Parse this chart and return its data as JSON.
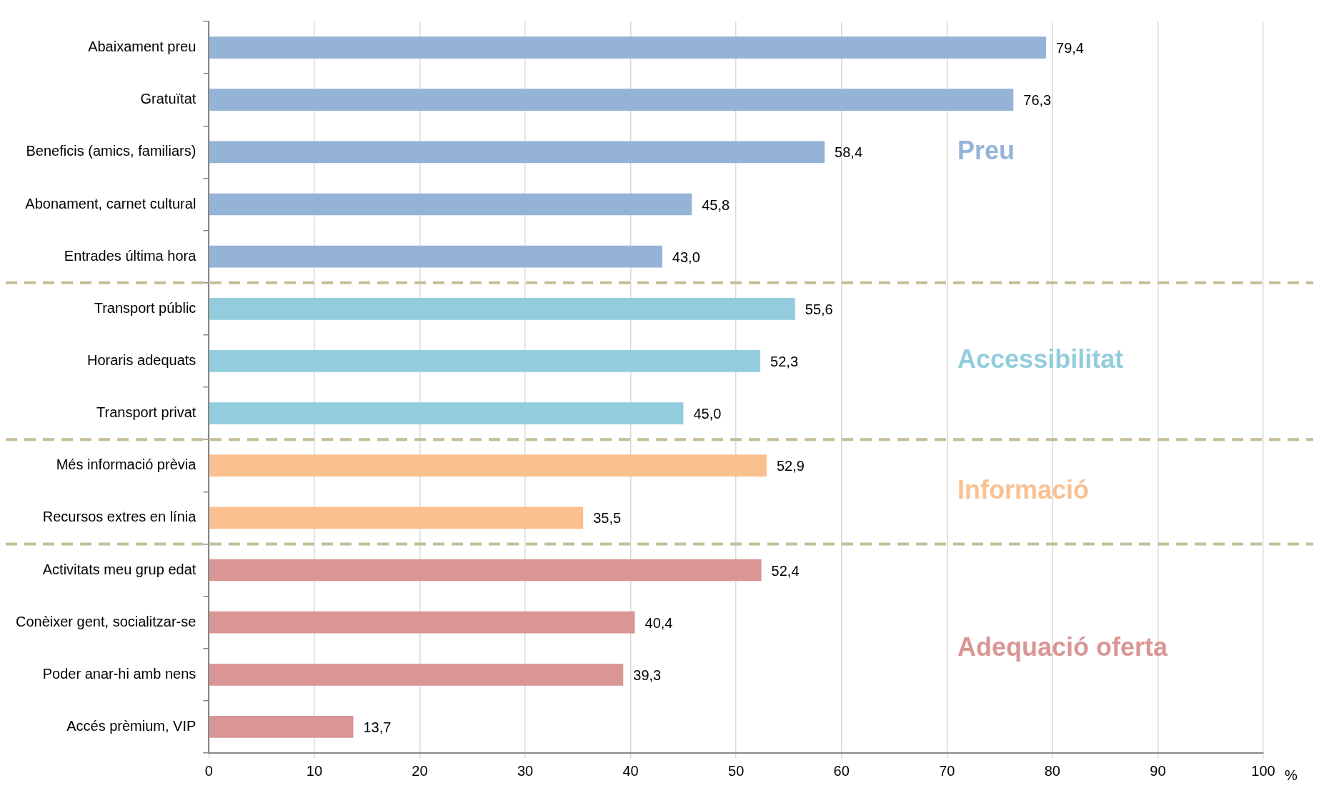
{
  "chart_data": {
    "type": "bar",
    "orientation": "horizontal",
    "xlabel": "%",
    "categories": [
      "Abaixament preu",
      "Gratuïtat",
      "Beneficis (amics, familiars)",
      "Abonament, carnet cultural",
      "Entrades última hora",
      "Transport públic",
      "Horaris adequats",
      "Transport privat",
      "Més informació prèvia",
      "Recursos extres en línia",
      "Activitats meu grup edat",
      "Conèixer gent, socialitzar-se",
      "Poder anar-hi amb nens",
      "Accés prèmium, VIP"
    ],
    "values": [
      79.4,
      76.3,
      58.4,
      45.8,
      43.0,
      55.6,
      52.3,
      45.0,
      52.9,
      35.5,
      52.4,
      40.4,
      39.3,
      13.7
    ],
    "value_labels": [
      "79,4",
      "76,3",
      "58,4",
      "45,8",
      "43,0",
      "55,6",
      "52,3",
      "45,0",
      "52,9",
      "35,5",
      "52,4",
      "40,4",
      "39,3",
      "13,7"
    ],
    "colors": [
      "#95b3d7",
      "#95b3d7",
      "#95b3d7",
      "#95b3d7",
      "#95b3d7",
      "#93cddd",
      "#93cddd",
      "#93cddd",
      "#fac090",
      "#fac090",
      "#d99694",
      "#d99694",
      "#d99694",
      "#d99694"
    ],
    "annotations": [
      "Preu",
      "Accessibilitat",
      "Informació",
      "Adequació oferta"
    ],
    "xlim": [
      0,
      100
    ],
    "xticks": [
      0,
      10,
      20,
      30,
      40,
      50,
      60,
      70,
      80,
      90,
      100
    ],
    "grid": "x",
    "legend": false
  }
}
